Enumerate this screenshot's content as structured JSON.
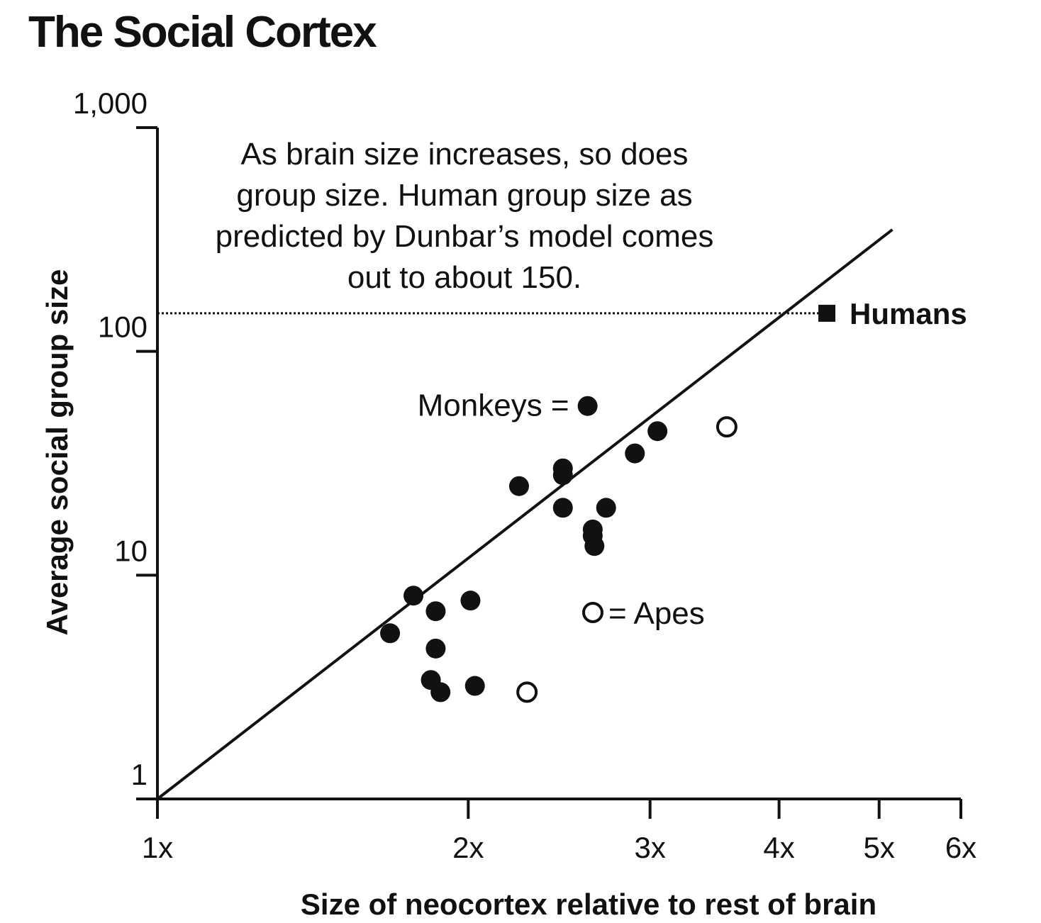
{
  "chart_data": {
    "type": "scatter",
    "title": "The Social Cortex",
    "xlabel": "Size of neocortex relative to rest of brain",
    "ylabel": "Average social group size",
    "x_scale": "log",
    "y_scale": "log",
    "xlim": [
      1,
      6
    ],
    "ylim": [
      1,
      1000
    ],
    "x_ticks": [
      {
        "value": 1,
        "label": "1x"
      },
      {
        "value": 2,
        "label": "2x"
      },
      {
        "value": 3,
        "label": "3x"
      },
      {
        "value": 4,
        "label": "4x"
      },
      {
        "value": 5,
        "label": "5x"
      },
      {
        "value": 6,
        "label": "6x"
      }
    ],
    "y_ticks": [
      {
        "value": 1,
        "label": "1"
      },
      {
        "value": 10,
        "label": "10"
      },
      {
        "value": 100,
        "label": "100"
      },
      {
        "value": 1000,
        "label": "1,000"
      }
    ],
    "grid": false,
    "annotation": [
      "As brain size increases, so does",
      "group size. Human group size as",
      "predicted by Dunbar’s model comes",
      "out to about 150."
    ],
    "legend": {
      "monkeys_label": "Monkeys =",
      "apes_label": "= Apes"
    },
    "series": [
      {
        "name": "Monkeys",
        "marker": "filled-circle",
        "points": [
          {
            "x": 1.68,
            "y": 5.5
          },
          {
            "x": 1.77,
            "y": 8.1
          },
          {
            "x": 1.86,
            "y": 6.9
          },
          {
            "x": 1.86,
            "y": 4.7
          },
          {
            "x": 1.84,
            "y": 3.4
          },
          {
            "x": 1.88,
            "y": 3.0
          },
          {
            "x": 2.01,
            "y": 7.7
          },
          {
            "x": 2.03,
            "y": 3.2
          },
          {
            "x": 2.24,
            "y": 25
          },
          {
            "x": 2.47,
            "y": 30
          },
          {
            "x": 2.47,
            "y": 28
          },
          {
            "x": 2.47,
            "y": 20
          },
          {
            "x": 2.61,
            "y": 57
          },
          {
            "x": 2.64,
            "y": 16
          },
          {
            "x": 2.64,
            "y": 15
          },
          {
            "x": 2.65,
            "y": 13.5
          },
          {
            "x": 2.72,
            "y": 20
          },
          {
            "x": 2.9,
            "y": 35
          },
          {
            "x": 3.05,
            "y": 44
          }
        ]
      },
      {
        "name": "Apes",
        "marker": "open-circle",
        "points": [
          {
            "x": 2.28,
            "y": 3.0
          },
          {
            "x": 3.56,
            "y": 46
          }
        ]
      },
      {
        "name": "Humans",
        "marker": "filled-square",
        "points": [
          {
            "x": 4.45,
            "y": 148
          }
        ]
      }
    ],
    "regression_line": {
      "x": [
        1,
        5.15
      ],
      "y": [
        1,
        350
      ]
    },
    "reference_line": {
      "style": "dotted",
      "y": 148,
      "x_from": 1,
      "x_to": 4.45
    },
    "colors": {
      "ink": "#111111",
      "background": "#ffffff"
    }
  }
}
